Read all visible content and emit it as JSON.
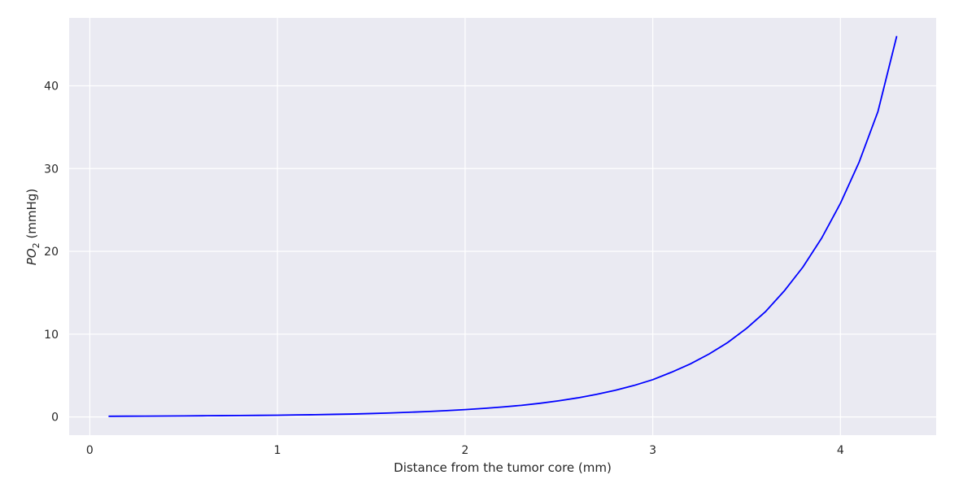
{
  "chart_data": {
    "type": "line",
    "title": "",
    "xlabel": "Distance from the tumor core (mm)",
    "ylabel": {
      "main": "PO",
      "subscript": "2",
      "suffix": " (mmHg)"
    },
    "xlim": [
      -0.11,
      4.51
    ],
    "ylim": [
      -2.2,
      48.2
    ],
    "xticks": [
      0,
      1,
      2,
      3,
      4
    ],
    "yticks": [
      0,
      10,
      20,
      30,
      40
    ],
    "xtick_labels": [
      "0",
      "1",
      "2",
      "3",
      "4"
    ],
    "ytick_labels": [
      "0",
      "10",
      "20",
      "30",
      "40"
    ],
    "grid": true,
    "background_color": "#eaeaf2",
    "grid_color": "#ffffff",
    "series": [
      {
        "color": "#0000ff",
        "x": [
          0.1,
          0.2,
          0.3,
          0.4,
          0.5,
          0.6,
          0.7,
          0.8,
          0.9,
          1.0,
          1.1,
          1.2,
          1.3,
          1.4,
          1.5,
          1.6,
          1.7,
          1.8,
          1.9,
          2.0,
          2.1,
          2.2,
          2.3,
          2.4,
          2.5,
          2.6,
          2.7,
          2.8,
          2.9,
          3.0,
          3.1,
          3.2,
          3.3,
          3.4,
          3.5,
          3.6,
          3.7,
          3.8,
          3.9,
          4.0,
          4.1,
          4.2,
          4.3
        ],
        "y": [
          0.08,
          0.09,
          0.1,
          0.11,
          0.12,
          0.14,
          0.15,
          0.17,
          0.19,
          0.21,
          0.24,
          0.27,
          0.31,
          0.35,
          0.41,
          0.48,
          0.56,
          0.65,
          0.76,
          0.88,
          1.03,
          1.2,
          1.4,
          1.65,
          1.95,
          2.3,
          2.72,
          3.22,
          3.8,
          4.5,
          5.4,
          6.4,
          7.6,
          9.0,
          10.7,
          12.7,
          15.2,
          18.1,
          21.6,
          25.8,
          30.8,
          36.9,
          46.0
        ]
      }
    ]
  }
}
